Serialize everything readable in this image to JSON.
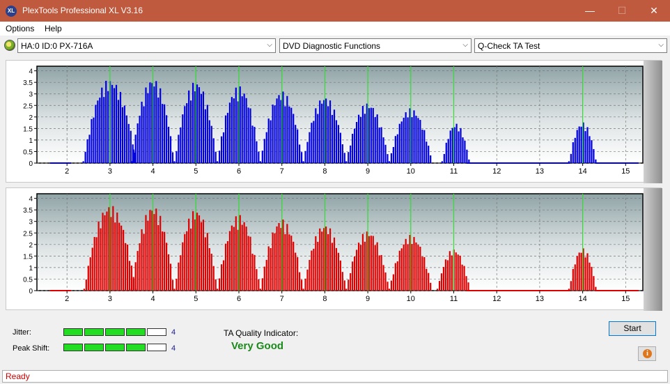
{
  "window": {
    "title": "PlexTools Professional XL V3.16",
    "app_icon_text": "XL",
    "min_glyph": "—",
    "max_glyph": "☐",
    "close_glyph": "✕"
  },
  "menu": {
    "items": [
      "Options",
      "Help"
    ]
  },
  "toolbar": {
    "drive": "HA:0 ID:0  PX-716A",
    "function": "DVD Diagnostic Functions",
    "test": "Q-Check TA Test",
    "arrow_glyph": "⌵"
  },
  "chart_data": [
    {
      "type": "bar",
      "series": "top",
      "color": "#0000dd",
      "x_ticks": [
        2,
        3,
        4,
        5,
        6,
        7,
        8,
        9,
        10,
        11,
        12,
        13,
        14,
        15
      ],
      "y_ticks": [
        "4",
        "3.5",
        "3",
        "2.5",
        "2",
        "1.5",
        "1",
        "0.5",
        "0"
      ],
      "ylim": [
        0,
        4.2
      ],
      "xlim": [
        1.3,
        15.4
      ],
      "green_markers": [
        3,
        4,
        5,
        6,
        7,
        8,
        9,
        10,
        11,
        14
      ],
      "peaks": [
        {
          "center": 3.0,
          "height": 3.65,
          "halfwidth": 0.62
        },
        {
          "center": 4.0,
          "height": 3.68,
          "halfwidth": 0.5
        },
        {
          "center": 5.0,
          "height": 3.55,
          "halfwidth": 0.5
        },
        {
          "center": 6.0,
          "height": 3.35,
          "halfwidth": 0.5
        },
        {
          "center": 7.0,
          "height": 3.12,
          "halfwidth": 0.5
        },
        {
          "center": 8.0,
          "height": 2.9,
          "halfwidth": 0.5
        },
        {
          "center": 9.0,
          "height": 2.62,
          "halfwidth": 0.5
        },
        {
          "center": 10.0,
          "height": 2.38,
          "halfwidth": 0.5
        },
        {
          "center": 11.05,
          "height": 1.73,
          "halfwidth": 0.32
        },
        {
          "center": 14.0,
          "height": 1.78,
          "halfwidth": 0.32
        }
      ]
    },
    {
      "type": "bar",
      "series": "bottom",
      "color": "#dd0000",
      "x_ticks": [
        2,
        3,
        4,
        5,
        6,
        7,
        8,
        9,
        10,
        11,
        12,
        13,
        14,
        15
      ],
      "y_ticks": [
        "4",
        "3.5",
        "3",
        "2.5",
        "2",
        "1.5",
        "1",
        "0.5",
        "0"
      ],
      "ylim": [
        0,
        4.2
      ],
      "xlim": [
        1.3,
        15.4
      ],
      "green_markers": [
        3,
        4,
        5,
        6,
        7,
        8,
        9,
        10,
        11,
        14
      ],
      "peaks": [
        {
          "center": 3.0,
          "height": 3.72,
          "halfwidth": 0.6
        },
        {
          "center": 4.0,
          "height": 3.68,
          "halfwidth": 0.5
        },
        {
          "center": 5.0,
          "height": 3.52,
          "halfwidth": 0.5
        },
        {
          "center": 6.0,
          "height": 3.3,
          "halfwidth": 0.5
        },
        {
          "center": 7.0,
          "height": 3.1,
          "halfwidth": 0.5
        },
        {
          "center": 8.0,
          "height": 2.88,
          "halfwidth": 0.5
        },
        {
          "center": 9.0,
          "height": 2.6,
          "halfwidth": 0.5
        },
        {
          "center": 10.0,
          "height": 2.42,
          "halfwidth": 0.5
        },
        {
          "center": 11.0,
          "height": 1.82,
          "halfwidth": 0.38
        },
        {
          "center": 14.0,
          "height": 1.85,
          "halfwidth": 0.32
        }
      ]
    }
  ],
  "results": {
    "jitter_label": "Jitter:",
    "jitter_value": "4",
    "jitter_level": 4,
    "peak_shift_label": "Peak Shift:",
    "peak_shift_value": "4",
    "peak_shift_level": 4,
    "meter_max": 5,
    "ta_label": "TA Quality Indicator:",
    "ta_value": "Very Good"
  },
  "buttons": {
    "start": "Start",
    "info_glyph": "i"
  },
  "status": {
    "text": "Ready"
  }
}
